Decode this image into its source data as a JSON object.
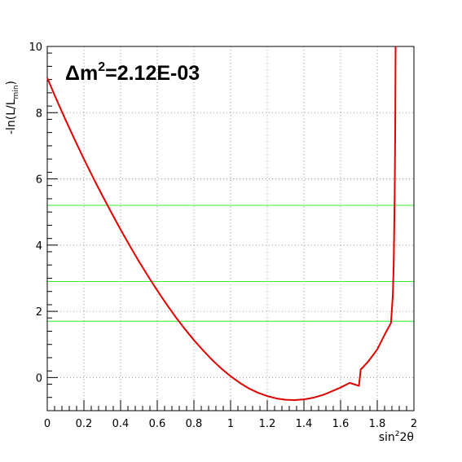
{
  "chart_data": {
    "type": "line",
    "xlabel_base": "sin",
    "xlabel_sup": "2",
    "xlabel_end": "2θ",
    "ylabel_base": "-ln(L/L",
    "ylabel_sub": "min",
    "ylabel_end": ")",
    "annotation_prefix": "Δm",
    "annotation_sup": "2",
    "annotation_value": "=2.12E-03",
    "xlim": [
      0,
      2
    ],
    "ylim": [
      -1,
      10
    ],
    "x_ticks": [
      "0",
      "0.2",
      "0.4",
      "0.6",
      "0.8",
      "1",
      "1.2",
      "1.4",
      "1.6",
      "1.8",
      "2"
    ],
    "y_ticks": [
      "0",
      "2",
      "4",
      "6",
      "8",
      "10"
    ],
    "grid": true,
    "colors": {
      "curve": "#e00000",
      "levels": "#33ee33",
      "grid": "#9a9a9a",
      "frame": "#000000"
    },
    "levels": [
      1.7,
      2.9,
      5.2
    ],
    "series": [
      {
        "x": [
          0.0,
          0.05,
          0.1,
          0.15,
          0.2,
          0.25,
          0.3,
          0.35,
          0.4,
          0.45,
          0.5,
          0.55,
          0.6,
          0.65,
          0.7,
          0.75,
          0.8,
          0.85,
          0.9,
          0.95,
          1.0,
          1.05,
          1.1,
          1.15,
          1.2,
          1.25,
          1.3,
          1.35,
          1.4,
          1.45,
          1.5,
          1.52,
          1.55,
          1.6,
          1.65,
          1.7,
          1.71,
          1.72,
          1.75,
          1.8,
          1.85,
          1.875,
          1.885,
          1.89,
          1.895,
          1.898,
          1.9
        ],
        "y": [
          9.05,
          8.4,
          7.78,
          7.18,
          6.6,
          6.04,
          5.5,
          4.98,
          4.47,
          3.98,
          3.51,
          3.06,
          2.63,
          2.22,
          1.83,
          1.47,
          1.13,
          0.82,
          0.53,
          0.27,
          0.04,
          -0.16,
          -0.33,
          -0.46,
          -0.56,
          -0.63,
          -0.67,
          -0.68,
          -0.66,
          -0.61,
          -0.53,
          -0.49,
          -0.42,
          -0.3,
          -0.16,
          -0.25,
          0.25,
          0.3,
          0.48,
          0.85,
          1.4,
          1.65,
          2.5,
          3.5,
          5.5,
          7.5,
          10.0
        ]
      }
    ]
  }
}
